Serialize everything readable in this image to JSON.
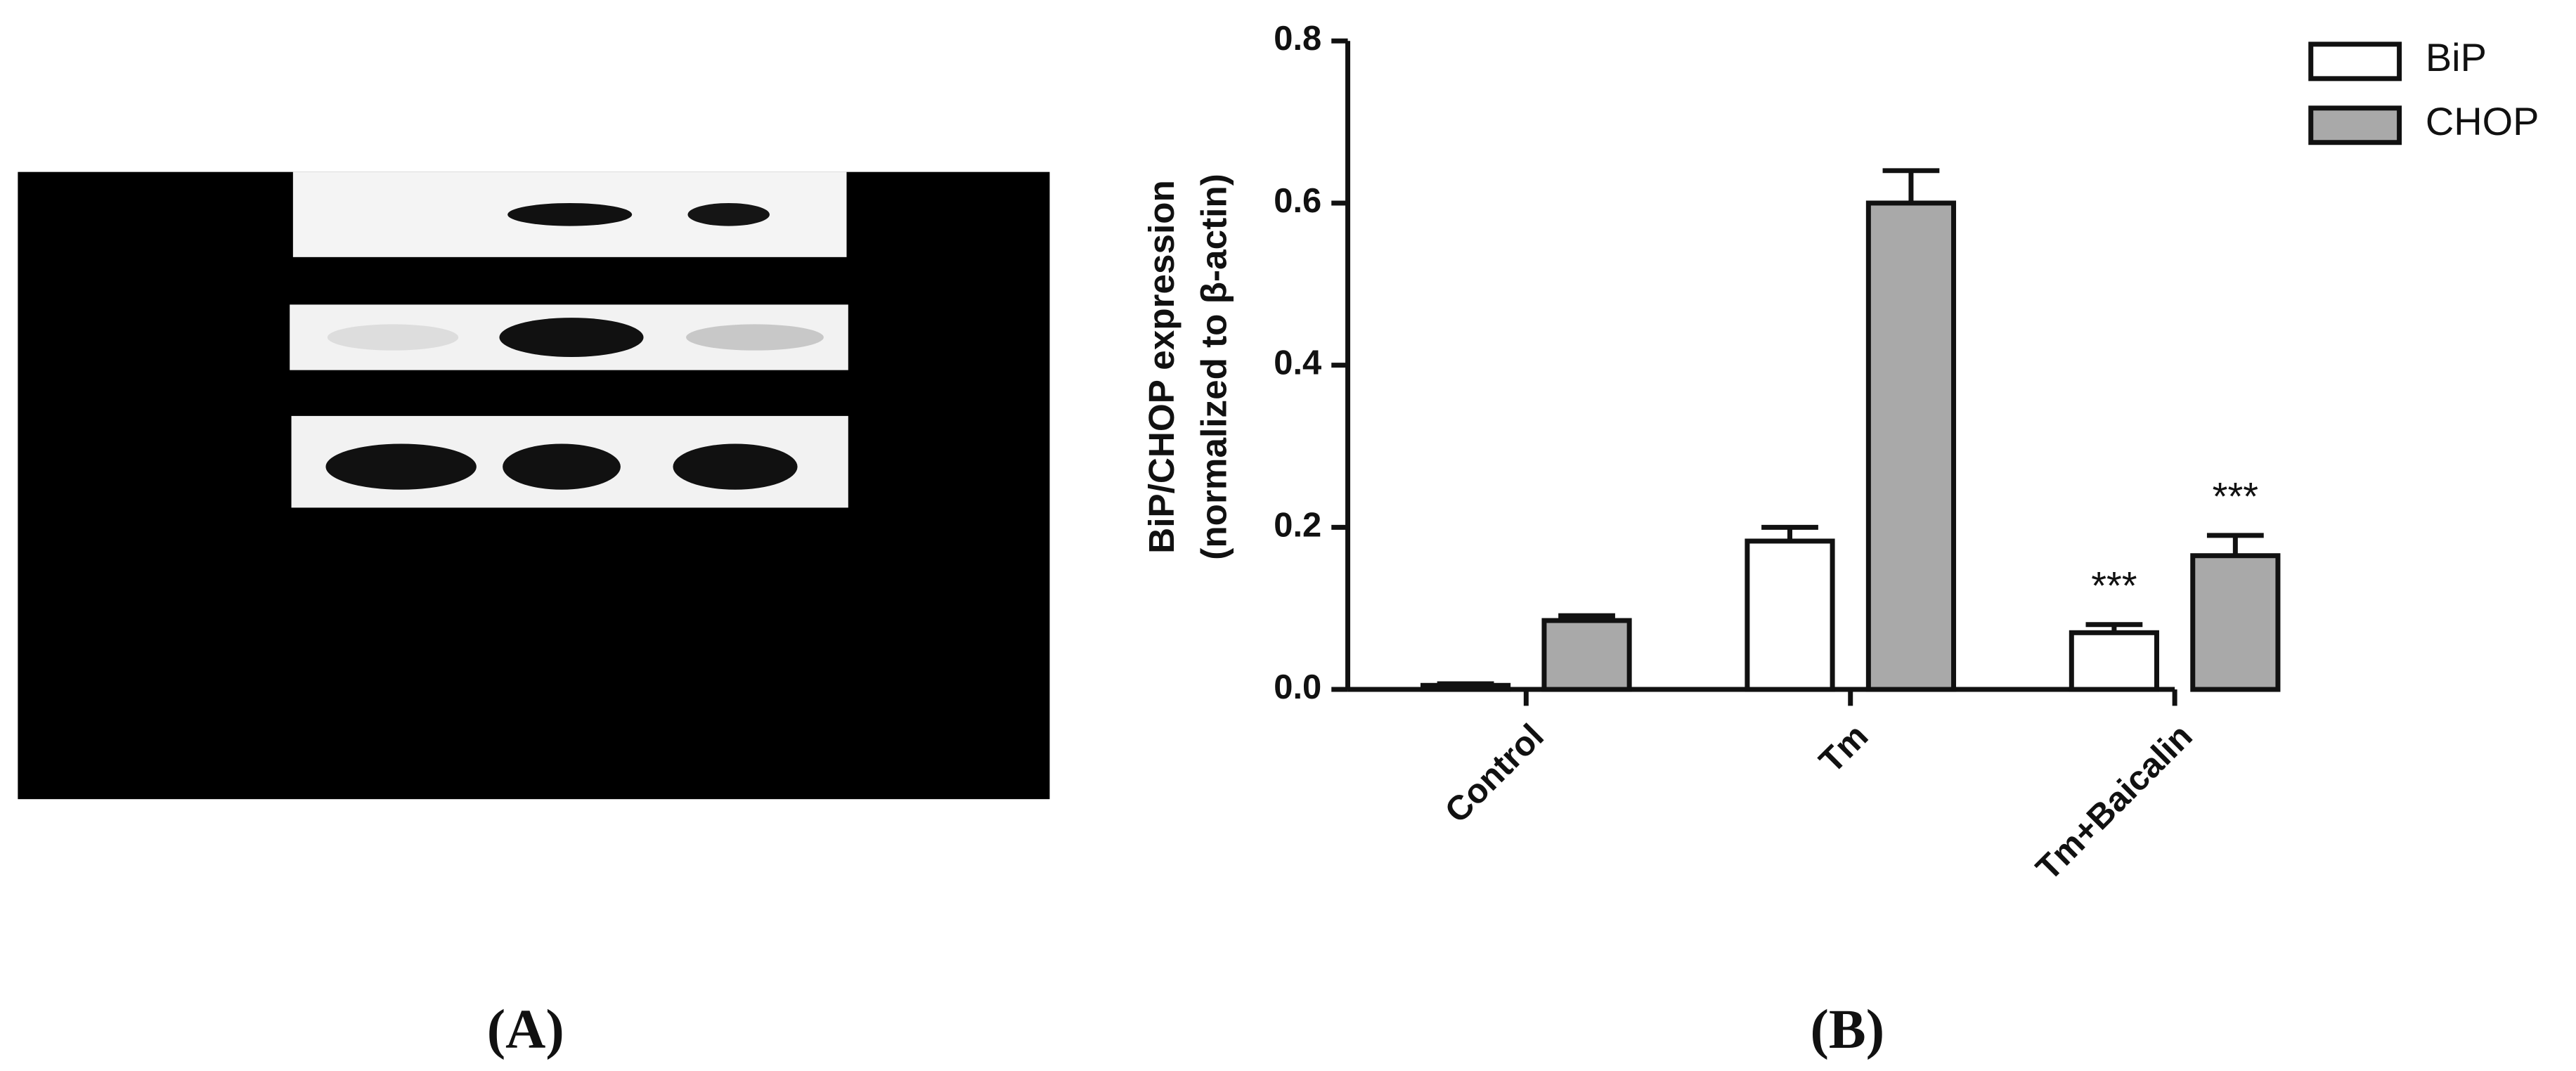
{
  "chart_data": {
    "type": "bar",
    "ylabel": [
      "BiP/CHOP expression",
      "(normalized to β-actin)"
    ],
    "categories": [
      "Control",
      "Tm",
      "Tm+Baicalin"
    ],
    "series": [
      {
        "name": "BiP",
        "color": "#ffffff",
        "values": [
          0.005,
          0.183,
          0.07
        ],
        "errors": [
          0.002,
          0.017,
          0.01
        ],
        "annotations": [
          null,
          null,
          "***"
        ]
      },
      {
        "name": "CHOP",
        "color": "#a9a9a9",
        "values": [
          0.085,
          0.6,
          0.165
        ],
        "errors": [
          0.006,
          0.04,
          0.025
        ],
        "annotations": [
          null,
          null,
          "***"
        ]
      }
    ],
    "ylim": [
      0,
      0.8
    ],
    "yticks": [
      {
        "value": 0,
        "label": "0.0"
      },
      0.2,
      0.4,
      0.6,
      0.8
    ],
    "legend": "upper right"
  },
  "panels": [
    "(A)",
    "(B)"
  ]
}
